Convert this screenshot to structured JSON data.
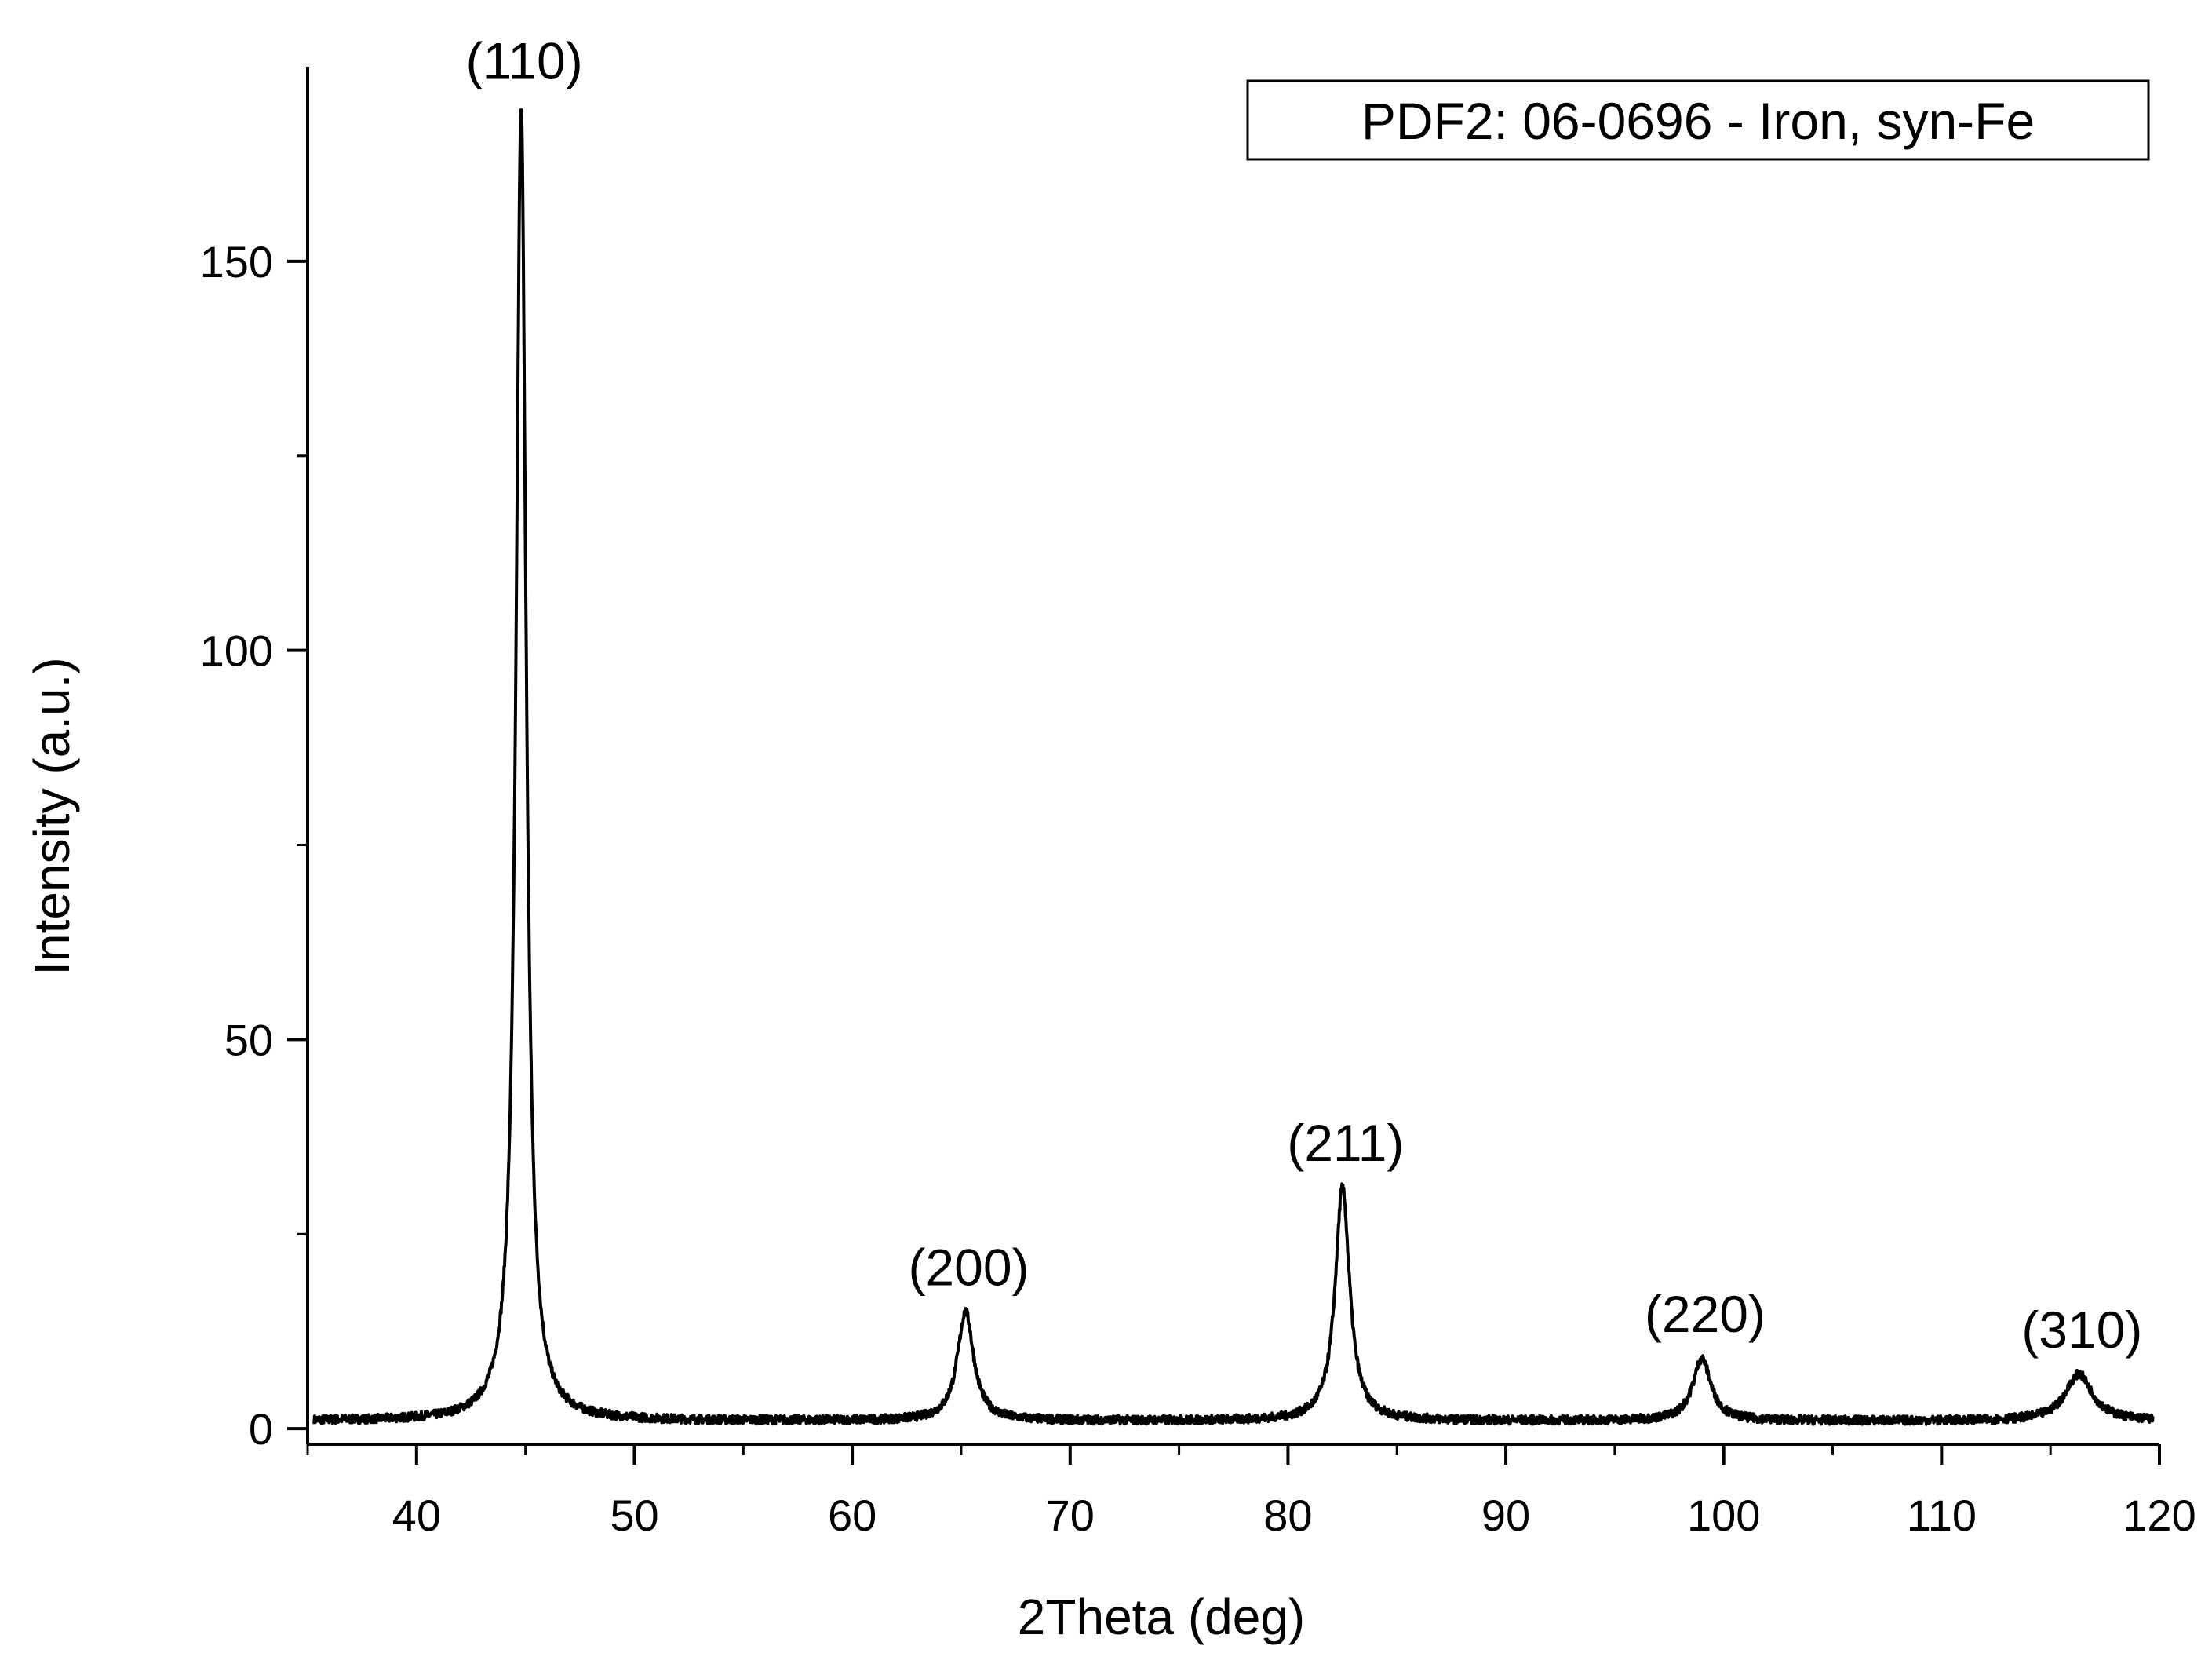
{
  "chart_data": {
    "type": "line",
    "title": "",
    "xlabel": "2Theta (deg)",
    "ylabel": "Intensity (a.u.)",
    "xlim": [
      35,
      120
    ],
    "ylim": [
      -2,
      175
    ],
    "x_ticks": [
      40,
      50,
      60,
      70,
      80,
      90,
      100,
      110,
      120
    ],
    "y_ticks": [
      0,
      50,
      100,
      150
    ],
    "x_tick_labels": [
      "40",
      "50",
      "60",
      "70",
      "80",
      "90",
      "100",
      "110",
      "120"
    ],
    "y_tick_labels": [
      "0",
      "50",
      "100",
      "150"
    ],
    "x_minor_step": 5,
    "y_minor_step": 25,
    "grid": false,
    "legend_box": {
      "text": "PDF2: 06-0696 - Iron, syn-Fe",
      "placement": "top-right"
    },
    "baseline": 1,
    "peaks": [
      {
        "label": "(110)",
        "x": 44.8,
        "y": 170,
        "width": 0.28
      },
      {
        "label": "(200)",
        "x": 65.2,
        "y": 15,
        "width": 0.45
      },
      {
        "label": "(211)",
        "x": 82.5,
        "y": 31,
        "width": 0.4
      },
      {
        "label": "(220)",
        "x": 99.0,
        "y": 9,
        "width": 0.5
      },
      {
        "label": "(310)",
        "x": 116.3,
        "y": 7,
        "width": 0.75
      }
    ],
    "series": [
      {
        "color": "#000000"
      }
    ]
  }
}
